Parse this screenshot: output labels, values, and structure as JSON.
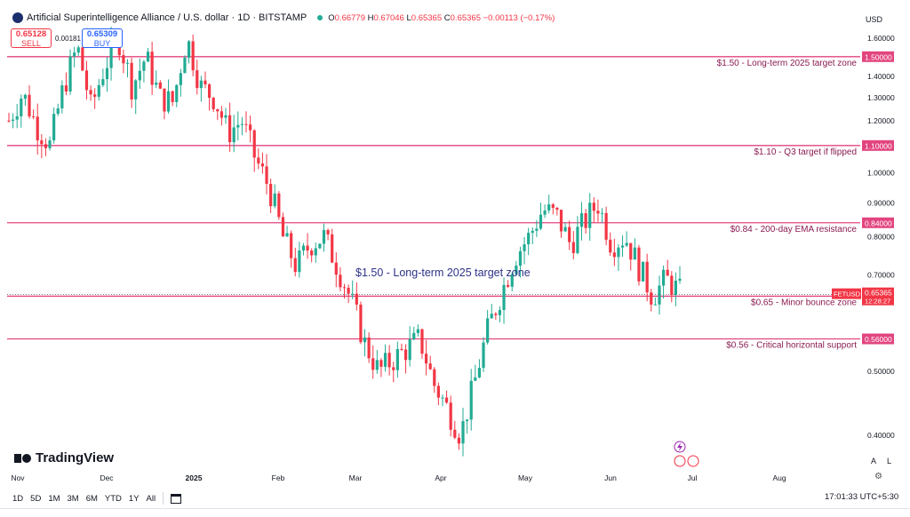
{
  "header": {
    "symbol": "Artificial Superintelligence Alliance / U.S. dollar · 1D · BITSTAMP",
    "ohlc": {
      "o_label": "O",
      "o": "0.66779",
      "h_label": "H",
      "h": "0.67046",
      "l_label": "L",
      "l": "0.65365",
      "c_label": "C",
      "c": "0.65365",
      "chg": "−0.00113 (−0.17%)"
    }
  },
  "trade": {
    "sell_price": "0.65128",
    "sell_label": "SELL",
    "spread": "0.00181",
    "buy_price": "0.65309",
    "buy_label": "BUY"
  },
  "currency": "USD",
  "brand": "TradingView",
  "ranges": [
    "1D",
    "5D",
    "1M",
    "3M",
    "6M",
    "YTD",
    "1Y",
    "All"
  ],
  "clock": "17:01:33 UTC+5:30",
  "scale_buttons": {
    "auto": "A",
    "log": "L"
  },
  "colors": {
    "up": "#22ab94",
    "down": "#f23645",
    "level": "#e2457f",
    "label": "#8a1b52",
    "annotation": "#2d3287"
  },
  "chart_data": {
    "type": "candlestick",
    "y_ticks": [
      "1.60000",
      "1.40000",
      "1.30000",
      "1.20000",
      "1.00000",
      "0.90000",
      "0.80000",
      "0.70000",
      "0.50000",
      "0.40000"
    ],
    "y_scale": "log",
    "x_ticks": [
      "Nov",
      "Dec",
      "2025",
      "Feb",
      "Mar",
      "Apr",
      "May",
      "Jun",
      "Jul",
      "Aug"
    ],
    "levels": [
      {
        "price": 1.5,
        "price_label": "1.50000",
        "text": "$1.50 - Long-term 2025 target zone"
      },
      {
        "price": 1.1,
        "price_label": "1.10000",
        "text": "$1.10 - Q3 target if flipped"
      },
      {
        "price": 0.84,
        "price_label": "0.84000",
        "text": "$0.84 - 200-day EMA resistance"
      },
      {
        "price": 0.65,
        "price_label": "0.65000",
        "text": "$0.65 - Minor bounce zone"
      },
      {
        "price": 0.56,
        "price_label": "0.56000",
        "text": "$0.56 - Critical horizontal support"
      }
    ],
    "current_price": {
      "ticker": "FETUSD",
      "price": "0.65365",
      "countdown": "12:28:27",
      "value": 0.65365
    },
    "annotation": "$1.50 - Long-term 2025 target zone",
    "grid": false,
    "series_anchors": [
      [
        "Nov",
        1.2
      ],
      [
        "Nov",
        1.32
      ],
      [
        "Nov",
        1.18
      ],
      [
        "Nov",
        1.1
      ],
      [
        "Nov",
        1.35
      ],
      [
        "Nov",
        1.55
      ],
      [
        "Dec",
        1.25
      ],
      [
        "Dec",
        1.45
      ],
      [
        "Dec",
        1.6
      ],
      [
        "Dec",
        1.35
      ],
      [
        "Dec",
        1.5
      ],
      [
        "Dec",
        1.3
      ],
      [
        "2025",
        1.28
      ],
      [
        "2025",
        1.6
      ],
      [
        "2025",
        1.35
      ],
      [
        "2025",
        1.3
      ],
      [
        "2025",
        1.15
      ],
      [
        "2025",
        1.2
      ],
      [
        "Feb",
        1.05
      ],
      [
        "Feb",
        0.95
      ],
      [
        "Feb",
        0.8
      ],
      [
        "Feb",
        0.72
      ],
      [
        "Feb",
        0.78
      ],
      [
        "Feb",
        0.8
      ],
      [
        "Mar",
        0.72
      ],
      [
        "Mar",
        0.64
      ],
      [
        "Mar",
        0.55
      ],
      [
        "Mar",
        0.5
      ],
      [
        "Mar",
        0.52
      ],
      [
        "Mar",
        0.54
      ],
      [
        "Apr",
        0.56
      ],
      [
        "Apr",
        0.48
      ],
      [
        "Apr",
        0.44
      ],
      [
        "Apr",
        0.4
      ],
      [
        "Apr",
        0.48
      ],
      [
        "Apr",
        0.58
      ],
      [
        "May",
        0.66
      ],
      [
        "May",
        0.75
      ],
      [
        "May",
        0.8
      ],
      [
        "May",
        0.88
      ],
      [
        "May",
        0.86
      ],
      [
        "May",
        0.78
      ],
      [
        "Jun",
        0.84
      ],
      [
        "Jun",
        0.9
      ],
      [
        "Jun",
        0.78
      ],
      [
        "Jun",
        0.8
      ],
      [
        "Jun",
        0.72
      ],
      [
        "Jun",
        0.65
      ],
      [
        "Jul",
        0.69
      ],
      [
        "Jul",
        0.66
      ]
    ]
  }
}
